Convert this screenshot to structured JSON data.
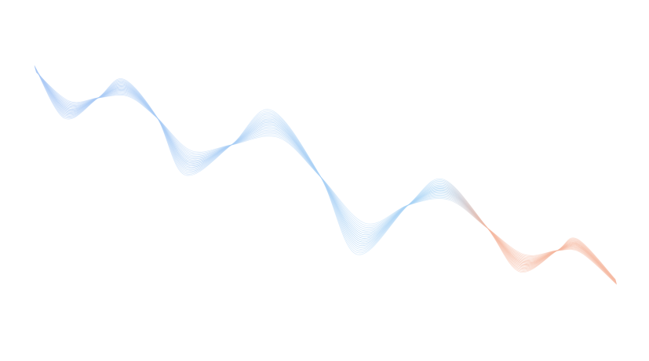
{
  "graphic": {
    "kind": "decorative wave line bundle",
    "line_count": 18,
    "colors": {
      "background": "#ffffff",
      "start": "#a9c8f5",
      "middle": "#a9d4f5",
      "end": "#f5b8a0"
    }
  }
}
